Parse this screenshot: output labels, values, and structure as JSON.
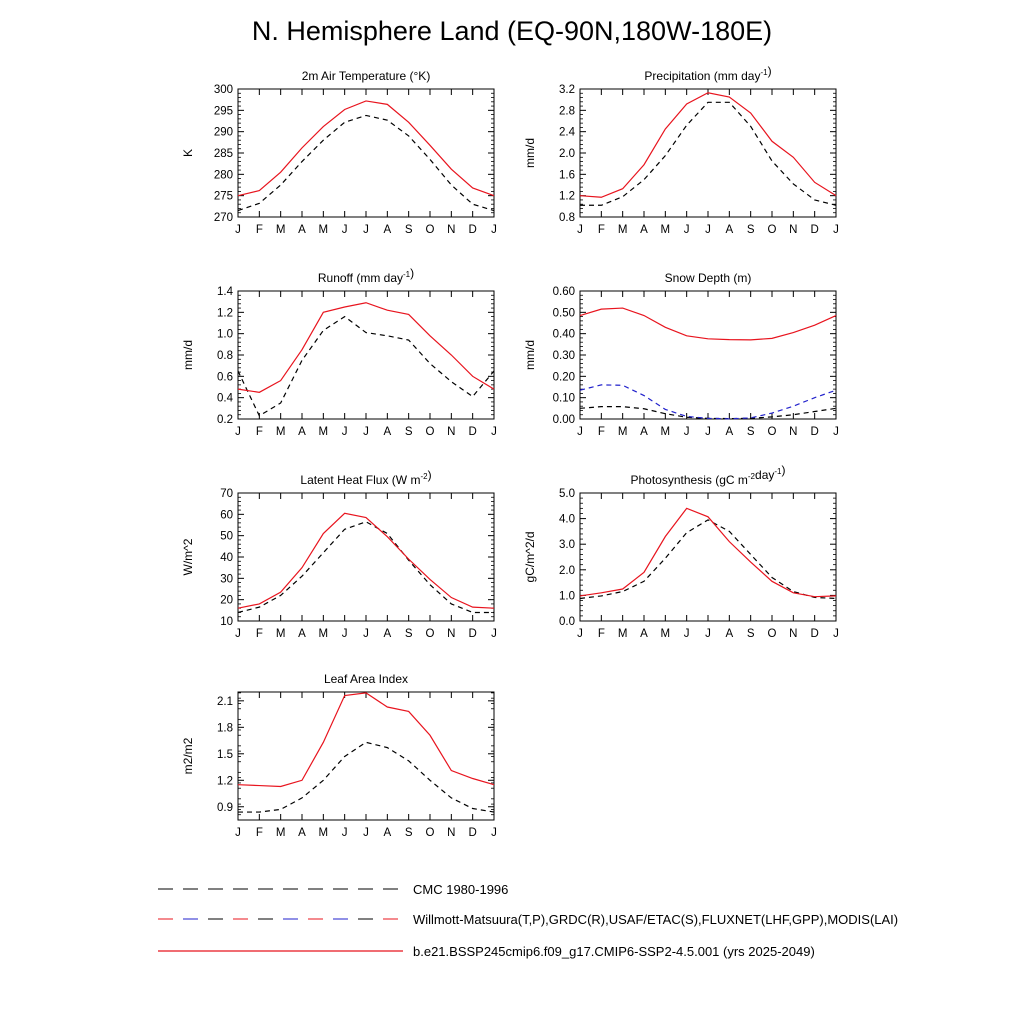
{
  "title": "N. Hemisphere Land (EQ-90N,180W-180E)",
  "months": [
    "J",
    "F",
    "M",
    "A",
    "M",
    "J",
    "J",
    "A",
    "S",
    "O",
    "N",
    "D",
    "J"
  ],
  "colors": {
    "obs": "#000000",
    "obs2": "#2222cc",
    "model": "#e8141e"
  },
  "legend": [
    {
      "label": "CMC 1980-1996",
      "style": "dash-black"
    },
    {
      "label": "Willmott-Matsuura(T,P),GRDC(R),USAF/ETAC(S),FLUXNET(LHF,GPP),MODIS(LAI)",
      "style": "dash-mixed"
    },
    {
      "label": "b.e21.BSSP245cmip6.f09_g17.CMIP6-SSP2-4.5.001 (yrs 2025-2049)",
      "style": "solid-red"
    }
  ],
  "chart_data": [
    {
      "type": "line",
      "title": "2m Air Temperature",
      "title_unit": "(°K)",
      "ylabel": "K",
      "ylim": [
        270,
        300
      ],
      "yticks": [
        270,
        275,
        280,
        285,
        290,
        295,
        300
      ],
      "tick_decimals": 0,
      "series": [
        {
          "role": "obs",
          "color": "obs",
          "dashed": true,
          "values": [
            271.5,
            273.2,
            277.5,
            283.0,
            288.0,
            292.2,
            293.8,
            292.7,
            289.0,
            283.5,
            277.5,
            273.0,
            271.5
          ]
        },
        {
          "role": "model",
          "color": "model",
          "dashed": false,
          "values": [
            275.0,
            276.2,
            280.5,
            286.2,
            291.2,
            295.2,
            297.2,
            296.4,
            292.2,
            286.8,
            281.2,
            276.8,
            275.0
          ]
        }
      ]
    },
    {
      "type": "line",
      "title": "Precipitation",
      "title_unit": "(mm day-1)",
      "ylabel": "mm/d",
      "ylim": [
        0.8,
        3.2
      ],
      "yticks": [
        0.8,
        1.2,
        1.6,
        2.0,
        2.4,
        2.8,
        3.2
      ],
      "tick_decimals": 1,
      "series": [
        {
          "role": "obs",
          "color": "obs",
          "dashed": true,
          "values": [
            1.02,
            1.02,
            1.18,
            1.5,
            1.95,
            2.52,
            2.95,
            2.95,
            2.5,
            1.85,
            1.42,
            1.12,
            1.02
          ]
        },
        {
          "role": "model",
          "color": "model",
          "dashed": false,
          "values": [
            1.2,
            1.17,
            1.33,
            1.78,
            2.45,
            2.92,
            3.13,
            3.05,
            2.75,
            2.22,
            1.92,
            1.45,
            1.2
          ]
        }
      ]
    },
    {
      "type": "line",
      "title": "Runoff",
      "title_unit": "(mm day-1)",
      "ylabel": "mm/d",
      "ylim": [
        0.2,
        1.4
      ],
      "yticks": [
        0.2,
        0.4,
        0.6,
        0.8,
        1.0,
        1.2,
        1.4
      ],
      "tick_decimals": 1,
      "series": [
        {
          "role": "obs",
          "color": "obs",
          "dashed": true,
          "values": [
            0.65,
            0.23,
            0.35,
            0.75,
            1.03,
            1.16,
            1.01,
            0.98,
            0.94,
            0.72,
            0.55,
            0.41,
            0.65
          ]
        },
        {
          "role": "model",
          "color": "model",
          "dashed": false,
          "values": [
            0.48,
            0.45,
            0.56,
            0.85,
            1.2,
            1.25,
            1.29,
            1.22,
            1.18,
            0.98,
            0.8,
            0.6,
            0.48
          ]
        }
      ]
    },
    {
      "type": "line",
      "title": "Snow Depth",
      "title_unit": "(m)",
      "ylabel": "mm/d",
      "ylim": [
        0.0,
        0.6
      ],
      "yticks": [
        0.0,
        0.1,
        0.2,
        0.3,
        0.4,
        0.5,
        0.6
      ],
      "tick_decimals": 2,
      "series": [
        {
          "role": "obs",
          "color": "obs",
          "dashed": true,
          "values": [
            0.05,
            0.058,
            0.058,
            0.048,
            0.025,
            0.008,
            0.003,
            0.002,
            0.003,
            0.01,
            0.02,
            0.035,
            0.05
          ]
        },
        {
          "role": "obs2",
          "color": "obs2",
          "dashed": true,
          "values": [
            0.135,
            0.16,
            0.158,
            0.11,
            0.045,
            0.012,
            0.003,
            0.001,
            0.005,
            0.028,
            0.06,
            0.1,
            0.135
          ]
        },
        {
          "role": "model",
          "color": "model",
          "dashed": false,
          "values": [
            0.485,
            0.515,
            0.52,
            0.485,
            0.43,
            0.39,
            0.376,
            0.372,
            0.371,
            0.378,
            0.405,
            0.44,
            0.485
          ]
        }
      ]
    },
    {
      "type": "line",
      "title": "Latent Heat Flux",
      "title_unit": "(W m-2)",
      "ylabel": "W/m^2",
      "ylim": [
        10,
        70
      ],
      "yticks": [
        10,
        20,
        30,
        40,
        50,
        60,
        70
      ],
      "tick_decimals": 0,
      "series": [
        {
          "role": "obs",
          "color": "obs",
          "dashed": true,
          "values": [
            14.0,
            16.5,
            22.0,
            31.0,
            42.0,
            53.0,
            56.5,
            51.0,
            38.5,
            27.0,
            18.0,
            14.0,
            14.0
          ]
        },
        {
          "role": "model",
          "color": "model",
          "dashed": false,
          "values": [
            16.0,
            18.0,
            23.5,
            35.0,
            51.0,
            60.5,
            58.5,
            49.5,
            39.0,
            29.5,
            21.0,
            16.5,
            16.0
          ]
        }
      ]
    },
    {
      "type": "line",
      "title": "Photosynthesis",
      "title_unit": "(gC m-2day-1)",
      "ylabel": "gC/m^2/d",
      "ylim": [
        0.0,
        5.0
      ],
      "yticks": [
        0.0,
        1.0,
        2.0,
        3.0,
        4.0,
        5.0
      ],
      "tick_decimals": 1,
      "series": [
        {
          "role": "obs",
          "color": "obs",
          "dashed": true,
          "values": [
            0.88,
            0.98,
            1.15,
            1.55,
            2.45,
            3.45,
            3.95,
            3.5,
            2.6,
            1.7,
            1.15,
            0.92,
            0.88
          ]
        },
        {
          "role": "model",
          "color": "model",
          "dashed": false,
          "values": [
            0.98,
            1.1,
            1.25,
            1.9,
            3.3,
            4.4,
            4.07,
            3.1,
            2.3,
            1.55,
            1.1,
            0.95,
            0.98
          ]
        }
      ]
    },
    {
      "type": "line",
      "title": "Leaf Area Index",
      "title_unit": "",
      "ylabel": "m2/m2",
      "ylim": [
        0.75,
        2.2
      ],
      "yticks": [
        0.9,
        1.2,
        1.5,
        1.8,
        2.1
      ],
      "tick_decimals": 1,
      "series": [
        {
          "role": "obs",
          "color": "obs",
          "dashed": true,
          "values": [
            0.84,
            0.84,
            0.87,
            1.0,
            1.2,
            1.47,
            1.63,
            1.57,
            1.42,
            1.2,
            1.0,
            0.88,
            0.84
          ]
        },
        {
          "role": "model",
          "color": "model",
          "dashed": false,
          "values": [
            1.15,
            1.14,
            1.13,
            1.2,
            1.63,
            2.16,
            2.19,
            2.03,
            1.98,
            1.71,
            1.31,
            1.22,
            1.15
          ]
        }
      ]
    }
  ]
}
